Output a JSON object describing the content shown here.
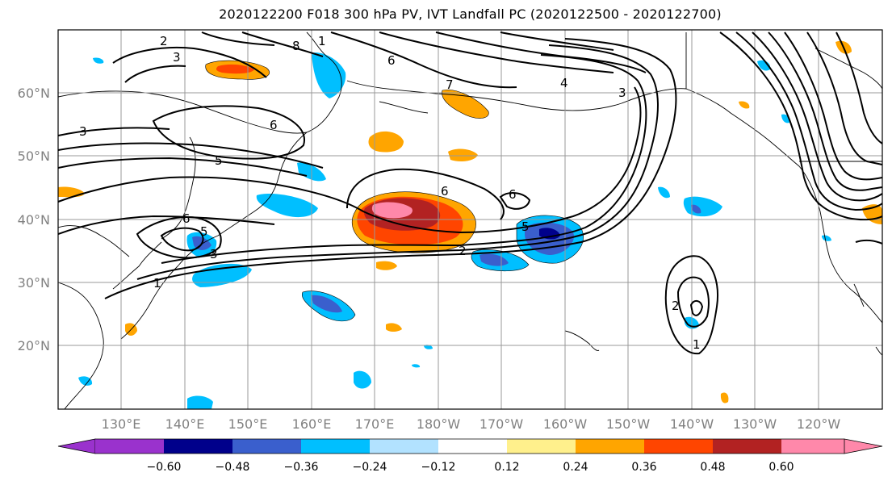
{
  "title": "2020122200 F018 300 hPa PV, IVT Landfall PC (2020122500 - 2020122700)",
  "map": {
    "lat_labels": [
      "60°N",
      "50°N",
      "40°N",
      "30°N",
      "20°N"
    ],
    "lon_labels": [
      "130°E",
      "140°E",
      "150°E",
      "160°E",
      "170°E",
      "180°W",
      "170°W",
      "160°W",
      "150°W",
      "140°W",
      "130°W",
      "120°W"
    ],
    "contour_labels": [
      "2",
      "3",
      "8",
      "1",
      "6",
      "6",
      "4",
      "7",
      "3",
      "6",
      "5",
      "6",
      "6",
      "5",
      "2",
      "5",
      "3",
      "1",
      "2",
      "1",
      "3"
    ],
    "gridlines": true
  },
  "colorbar": {
    "tick_labels": [
      "−0.60",
      "−0.48",
      "−0.36",
      "−0.24",
      "−0.12",
      "0.12",
      "0.24",
      "0.36",
      "0.48",
      "0.60"
    ],
    "colors": [
      "#9a32cd",
      "#00008b",
      "#3a5fcd",
      "#00bfff",
      "#b2e2ff",
      "#ffffff",
      "#fff08c",
      "#ffa500",
      "#ff4500",
      "#b22222",
      "#ff88aa"
    ]
  }
}
